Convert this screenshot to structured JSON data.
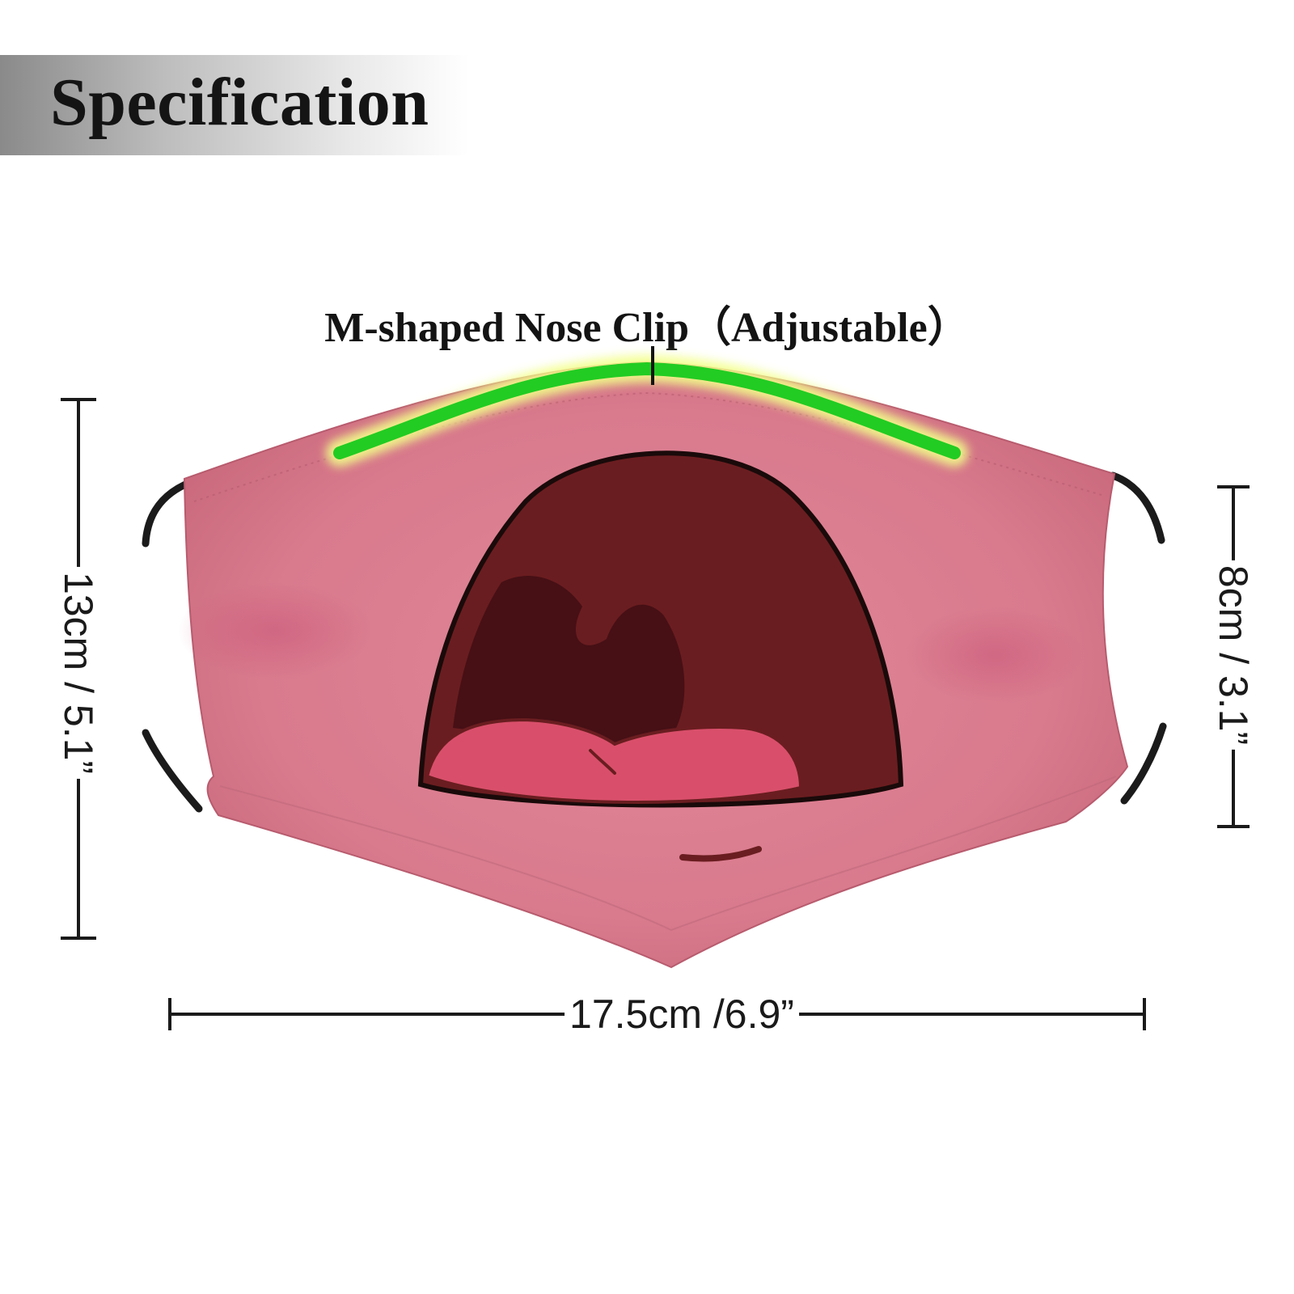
{
  "header": {
    "title": "Specification"
  },
  "annotations": {
    "nose_clip_label": "M-shaped Nose Clip（Adjustable）"
  },
  "dimensions": {
    "height": "13cm / 5.1”",
    "strap_height": "8cm / 3.1”",
    "width": "17.5cm /6.9”"
  },
  "colors": {
    "mask": "#d9788a",
    "nose_clip": "#22cc22",
    "mouth_outer": "#6a1d20",
    "tongue": "#d94f6b",
    "strap": "#1b1b1b"
  },
  "product": {
    "icon": "face-mask-mouth-print"
  }
}
